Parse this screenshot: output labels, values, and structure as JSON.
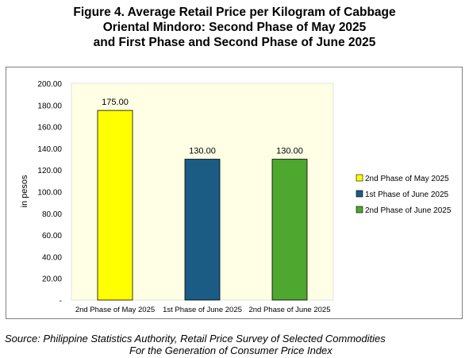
{
  "title_lines": [
    "Figure 4. Average Retail Price per Kilogram of Cabbage",
    "Oriental Mindoro: Second Phase of May 2025",
    "and First Phase and Second Phase of June 2025"
  ],
  "source_lines": [
    "Source: Philippine Statistics Authority, Retail Price Survey of Selected Commodities",
    "For the Generation of Consumer Price Index"
  ],
  "chart_data": {
    "type": "bar",
    "categories": [
      "2nd Phase of May 2025",
      "1st Phase of June 2025",
      "2nd Phase of June 2025"
    ],
    "values": [
      175.0,
      130.0,
      130.0
    ],
    "value_labels": [
      "175.00",
      "130.00",
      "130.00"
    ],
    "colors": [
      "#ffff00",
      "#1a5c84",
      "#4ea72e"
    ],
    "ylabel": "in pesos",
    "ylim": [
      0,
      200
    ],
    "yticks": [
      0,
      20,
      40,
      60,
      80,
      100,
      120,
      140,
      160,
      180,
      200
    ],
    "ytick_labels": [
      "-",
      "20.00",
      "40.00",
      "60.00",
      "80.00",
      "100.00",
      "120.00",
      "140.00",
      "160.00",
      "180.00",
      "200.00"
    ],
    "legend": {
      "position": "right",
      "entries": [
        "2nd Phase of May 2025",
        "1st Phase of June 2025",
        "2nd Phase of June 2025"
      ]
    },
    "plot_background": "#ffffe5",
    "grid": false
  }
}
